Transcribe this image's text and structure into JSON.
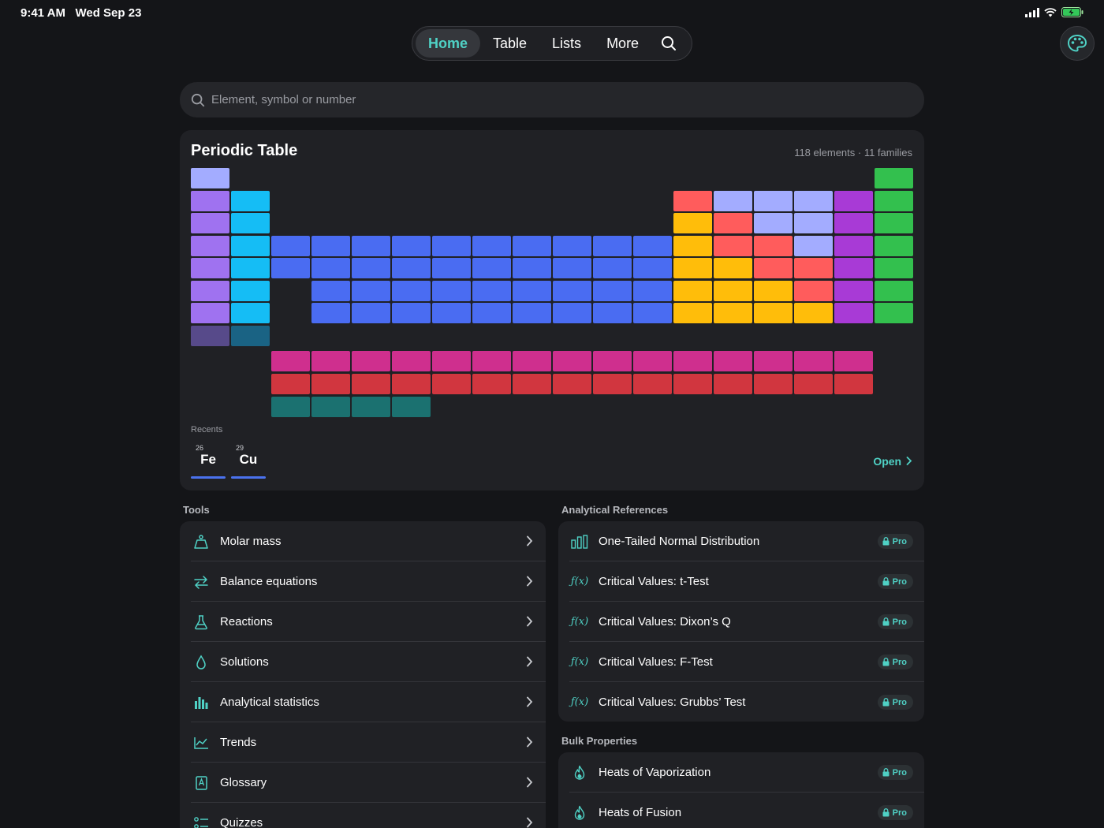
{
  "status_bar": {
    "time": "9:41 AM",
    "date": "Wed Sep 23"
  },
  "nav": {
    "tabs": [
      {
        "label": "Home",
        "active": true
      },
      {
        "label": "Table",
        "active": false
      },
      {
        "label": "Lists",
        "active": false
      },
      {
        "label": "More",
        "active": false
      }
    ],
    "search_icon": "search-icon",
    "theme_icon": "palette-icon"
  },
  "search": {
    "placeholder": "Element, symbol or number"
  },
  "periodic_table": {
    "title": "Periodic Table",
    "subtitle": "118 elements · 11 families",
    "recents_label": "Recents",
    "recents": [
      {
        "number": "26",
        "symbol": "Fe"
      },
      {
        "number": "29",
        "symbol": "Cu"
      }
    ],
    "open_label": "Open",
    "family_colors": {
      "nonmetal": "#a3acff",
      "alkali": "#9f72f0",
      "alkaline": "#15bdf5",
      "transition": "#4a6cf2",
      "post_transition": "#ffbd0a",
      "metalloid": "#ff5c5c",
      "halogen": "#a83ad6",
      "noble": "#33c04e",
      "lanthanide": "#cf2f8e",
      "actinide": "#d1363f",
      "unknown": "#1b7170",
      "alkali_dim": "#574a8a",
      "alkaline_dim": "#1a6384"
    }
  },
  "tools": {
    "label": "Tools",
    "items": [
      {
        "label": "Molar mass",
        "icon": "weight-icon"
      },
      {
        "label": "Balance equations",
        "icon": "arrows-swap-icon"
      },
      {
        "label": "Reactions",
        "icon": "flask-icon"
      },
      {
        "label": "Solutions",
        "icon": "droplet-icon"
      },
      {
        "label": "Analytical statistics",
        "icon": "bar-chart-icon"
      },
      {
        "label": "Trends",
        "icon": "line-chart-icon"
      },
      {
        "label": "Glossary",
        "icon": "book-icon"
      },
      {
        "label": "Quizzes",
        "icon": "quiz-list-icon"
      }
    ]
  },
  "analytical": {
    "label": "Analytical References",
    "items": [
      {
        "label": "One-Tailed Normal Distribution",
        "icon": "distribution-icon",
        "badge": "Pro"
      },
      {
        "label": "Critical Values: t-Test",
        "icon": "function-icon",
        "badge": "Pro"
      },
      {
        "label": "Critical Values: Dixon’s Q",
        "icon": "function-icon",
        "badge": "Pro"
      },
      {
        "label": "Critical Values: F-Test",
        "icon": "function-icon",
        "badge": "Pro"
      },
      {
        "label": "Critical Values: Grubbs’ Test",
        "icon": "function-icon",
        "badge": "Pro"
      }
    ],
    "fx_glyph": "ƒ(x)"
  },
  "bulk": {
    "label": "Bulk Properties",
    "items": [
      {
        "label": "Heats of Vaporization",
        "icon": "flame-icon",
        "badge": "Pro"
      },
      {
        "label": "Heats of Fusion",
        "icon": "flame-icon",
        "badge": "Pro"
      }
    ]
  }
}
